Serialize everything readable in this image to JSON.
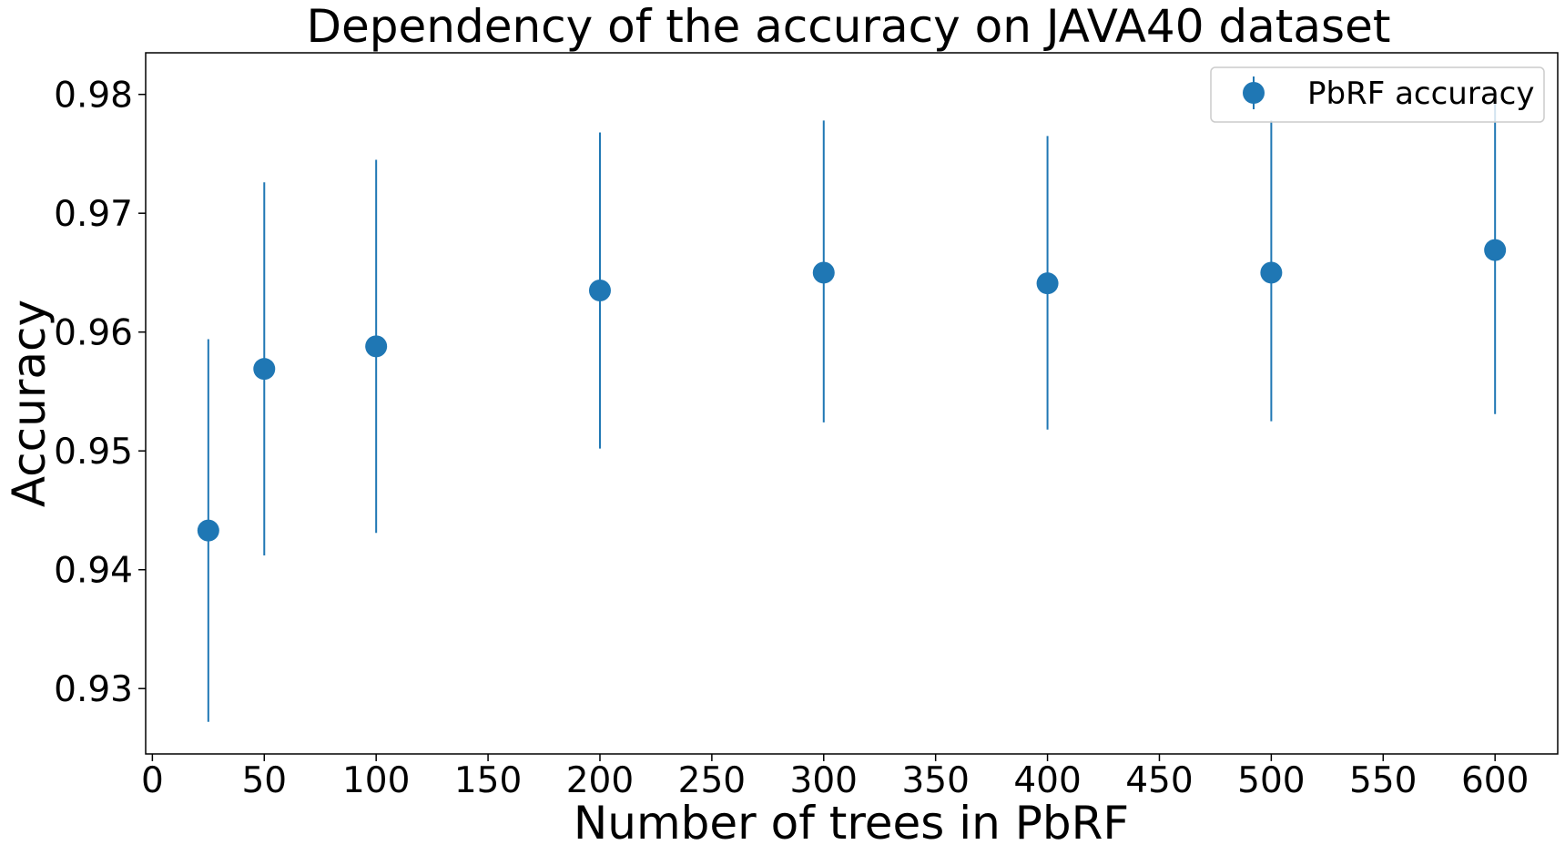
{
  "chart_data": {
    "type": "scatter",
    "title": "Dependency of the accuracy on JAVA40 dataset",
    "xlabel": "Number of trees in PbRF",
    "ylabel": "Accuracy",
    "xlim": [
      -3,
      628
    ],
    "ylim": [
      0.9245,
      0.9835
    ],
    "x_ticks": [
      0,
      50,
      100,
      150,
      200,
      250,
      300,
      350,
      400,
      450,
      500,
      550,
      600
    ],
    "y_ticks": [
      0.93,
      0.94,
      0.95,
      0.96,
      0.97,
      0.98
    ],
    "x_tick_labels": [
      "0",
      "50",
      "100",
      "150",
      "200",
      "250",
      "300",
      "350",
      "400",
      "450",
      "500",
      "550",
      "600"
    ],
    "y_tick_labels": [
      "0.93",
      "0.94",
      "0.95",
      "0.96",
      "0.97",
      "0.98"
    ],
    "grid": false,
    "legend": {
      "position": "upper-right"
    },
    "series": [
      {
        "name": "PbRF accuracy",
        "color": "#1f77b4",
        "marker": "circle",
        "x": [
          25,
          50,
          100,
          200,
          300,
          400,
          500,
          600
        ],
        "y": [
          0.9433,
          0.9569,
          0.9588,
          0.9635,
          0.965,
          0.9641,
          0.965,
          0.9669
        ],
        "err_low": [
          0.9272,
          0.9412,
          0.9431,
          0.9502,
          0.9524,
          0.9518,
          0.9525,
          0.9531
        ],
        "err_high": [
          0.9594,
          0.9726,
          0.9745,
          0.9768,
          0.9778,
          0.9765,
          0.9778,
          0.98
        ]
      }
    ]
  }
}
